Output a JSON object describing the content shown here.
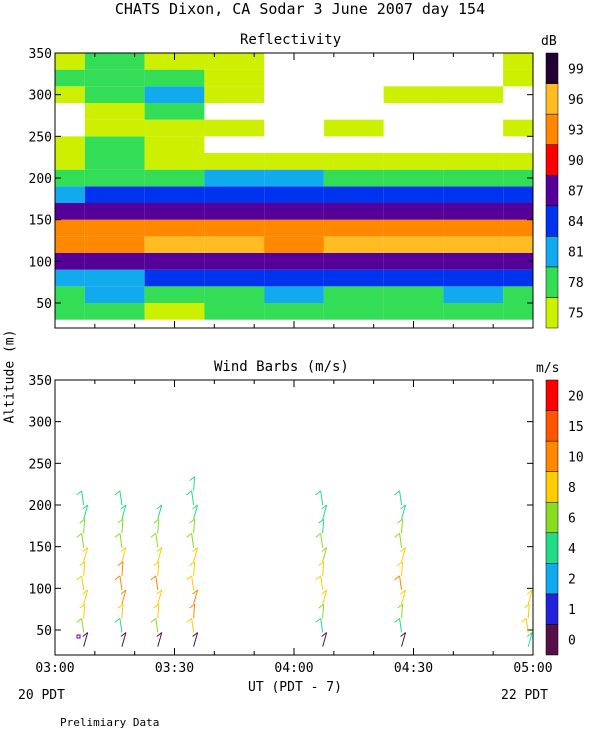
{
  "title": "CHATS Dixon, CA  Sodar   3 June 2007  day 154",
  "footer_note": "Prelimiary Data",
  "left_bottom_label": "20 PDT",
  "right_bottom_label": "22 PDT",
  "colors": {
    "reflectivity": [
      "#ccf000",
      "#33dd55",
      "#11aaee",
      "#0033ee",
      "#550099",
      "#ff0000",
      "#ff8800",
      "#ffbb22",
      "#220033"
    ],
    "wind": [
      "#551144",
      "#2222dd",
      "#11aaee",
      "#22dd88",
      "#88dd22",
      "#ffcc00",
      "#ff8800",
      "#ff5500",
      "#ff0000"
    ]
  },
  "chart_data": [
    {
      "type": "heatmap",
      "title": "Reflectivity",
      "ylabel": "Altitude (m)",
      "xlabel": "UT  (PDT - 7)",
      "x_ticks": [
        "03:00",
        "03:30",
        "04:00",
        "04:30",
        "05:00"
      ],
      "y_ticks": [
        50,
        100,
        150,
        200,
        250,
        300,
        350
      ],
      "ylim": [
        20,
        350
      ],
      "xlim_hours": [
        3.0,
        5.0
      ],
      "colorbar_unit": "dB",
      "colorbar_levels": [
        75,
        78,
        81,
        84,
        87,
        90,
        93,
        96,
        99
      ],
      "columns_time": [
        "03:00",
        "03:15",
        "03:30",
        "03:45",
        "04:00",
        "04:15",
        "04:30",
        "04:45",
        "05:00"
      ],
      "rows_altitude": [
        40,
        60,
        80,
        100,
        120,
        140,
        160,
        180,
        200,
        220,
        240,
        260,
        280,
        300,
        320,
        340
      ],
      "grid": [
        [
          78,
          78,
          75,
          78,
          78,
          78,
          78,
          78,
          78
        ],
        [
          78,
          81,
          78,
          78,
          81,
          78,
          78,
          81,
          78
        ],
        [
          81,
          81,
          84,
          84,
          84,
          84,
          84,
          84,
          84
        ],
        [
          87,
          87,
          87,
          87,
          87,
          87,
          87,
          87,
          87
        ],
        [
          93,
          93,
          96,
          96,
          93,
          96,
          96,
          96,
          96
        ],
        [
          93,
          93,
          93,
          93,
          93,
          93,
          93,
          93,
          93
        ],
        [
          87,
          87,
          87,
          87,
          87,
          87,
          87,
          87,
          87
        ],
        [
          81,
          84,
          84,
          84,
          84,
          84,
          84,
          84,
          84
        ],
        [
          78,
          78,
          78,
          81,
          81,
          78,
          78,
          78,
          78
        ],
        [
          75,
          78,
          75,
          75,
          75,
          75,
          75,
          75,
          75
        ],
        [
          75,
          78,
          75,
          0,
          0,
          0,
          0,
          0,
          0
        ],
        [
          0,
          75,
          75,
          75,
          0,
          75,
          0,
          0,
          75
        ],
        [
          0,
          75,
          78,
          0,
          0,
          0,
          0,
          0,
          0
        ],
        [
          75,
          78,
          81,
          75,
          0,
          0,
          75,
          75,
          0
        ],
        [
          78,
          78,
          78,
          75,
          0,
          0,
          0,
          0,
          75
        ],
        [
          75,
          78,
          75,
          75,
          0,
          0,
          0,
          0,
          75
        ]
      ]
    },
    {
      "type": "scatter",
      "title": "Wind Barbs (m/s)",
      "ylabel": "Altitude (m)",
      "xlabel": "UT  (PDT - 7)",
      "x_ticks": [
        "03:00",
        "03:30",
        "04:00",
        "04:30",
        "05:00"
      ],
      "y_ticks": [
        50,
        100,
        150,
        200,
        250,
        300,
        350
      ],
      "ylim": [
        20,
        350
      ],
      "xlim_hours": [
        3.0,
        5.0
      ],
      "colorbar_unit": "m/s",
      "colorbar_levels": [
        0,
        1,
        2,
        4,
        6,
        8,
        10,
        15,
        20
      ],
      "profiles": [
        {
          "time_h": 3.12,
          "speeds": [
            0,
            6,
            8,
            8,
            8,
            8,
            8,
            6,
            6,
            4,
            4
          ]
        },
        {
          "time_h": 3.28,
          "speeds": [
            0,
            4,
            8,
            10,
            10,
            10,
            8,
            6,
            6,
            4,
            4
          ]
        },
        {
          "time_h": 3.43,
          "speeds": [
            0,
            6,
            8,
            8,
            10,
            8,
            8,
            6,
            6,
            4
          ]
        },
        {
          "time_h": 3.58,
          "speeds": [
            0,
            8,
            10,
            10,
            8,
            8,
            8,
            6,
            6,
            4,
            4,
            4
          ]
        },
        {
          "time_h": 4.12,
          "speeds": [
            0,
            4,
            6,
            8,
            8,
            8,
            6,
            6,
            4,
            4,
            4
          ]
        },
        {
          "time_h": 4.45,
          "speeds": [
            0,
            4,
            6,
            8,
            10,
            8,
            8,
            6,
            6,
            4,
            4
          ]
        },
        {
          "time_h": 4.98,
          "speeds": [
            4,
            8,
            8,
            8
          ]
        }
      ]
    }
  ]
}
